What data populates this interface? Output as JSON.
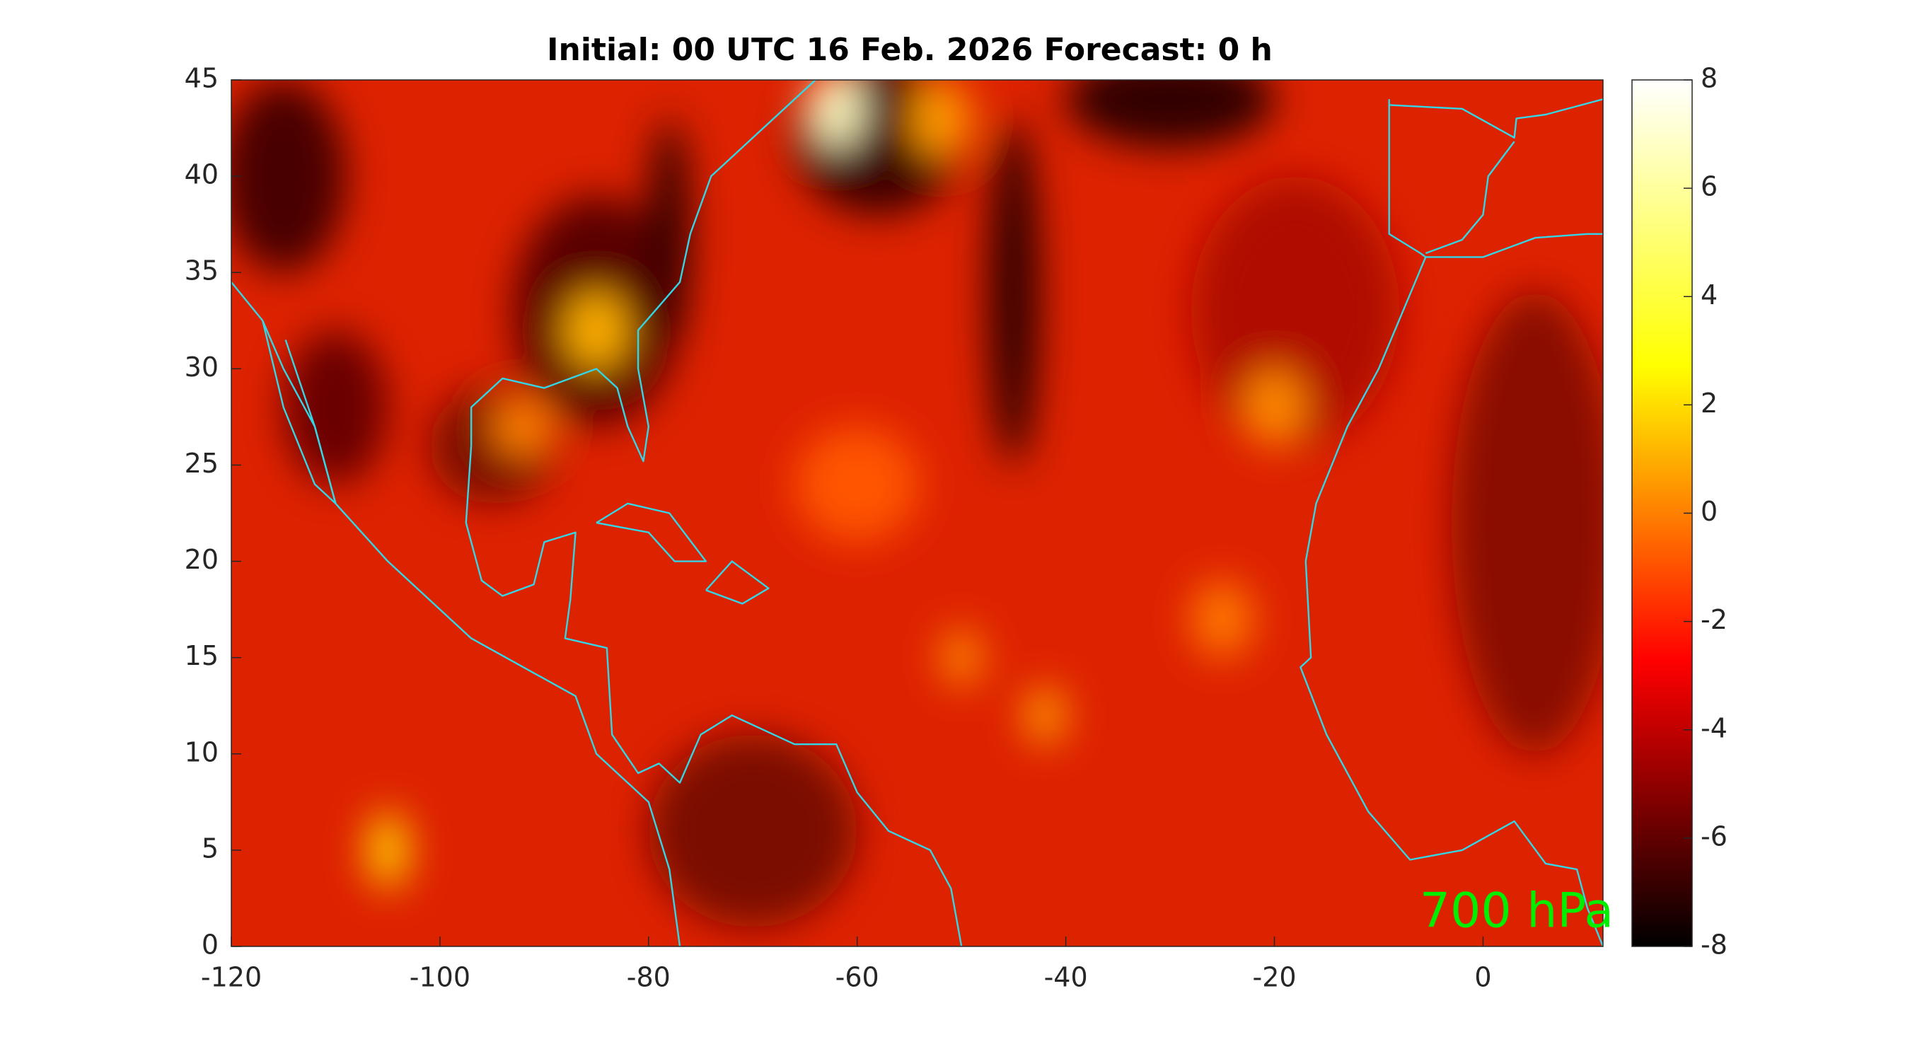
{
  "chart_data": {
    "type": "heatmap",
    "title": "Initial: 00 UTC 16 Feb. 2026 Forecast: 0 h",
    "xlim": [
      -120,
      11.5
    ],
    "xticks": [
      -120,
      -100,
      -80,
      -60,
      -40,
      -20,
      0
    ],
    "ylim": [
      0,
      45
    ],
    "yticks": [
      0,
      5,
      10,
      15,
      20,
      25,
      30,
      35,
      40,
      45
    ],
    "colorbar": {
      "lim": [
        -8,
        8
      ],
      "ticks": [
        -8,
        -6,
        -4,
        -2,
        0,
        2,
        4,
        6,
        8
      ]
    },
    "annotation": "700 hPa"
  }
}
